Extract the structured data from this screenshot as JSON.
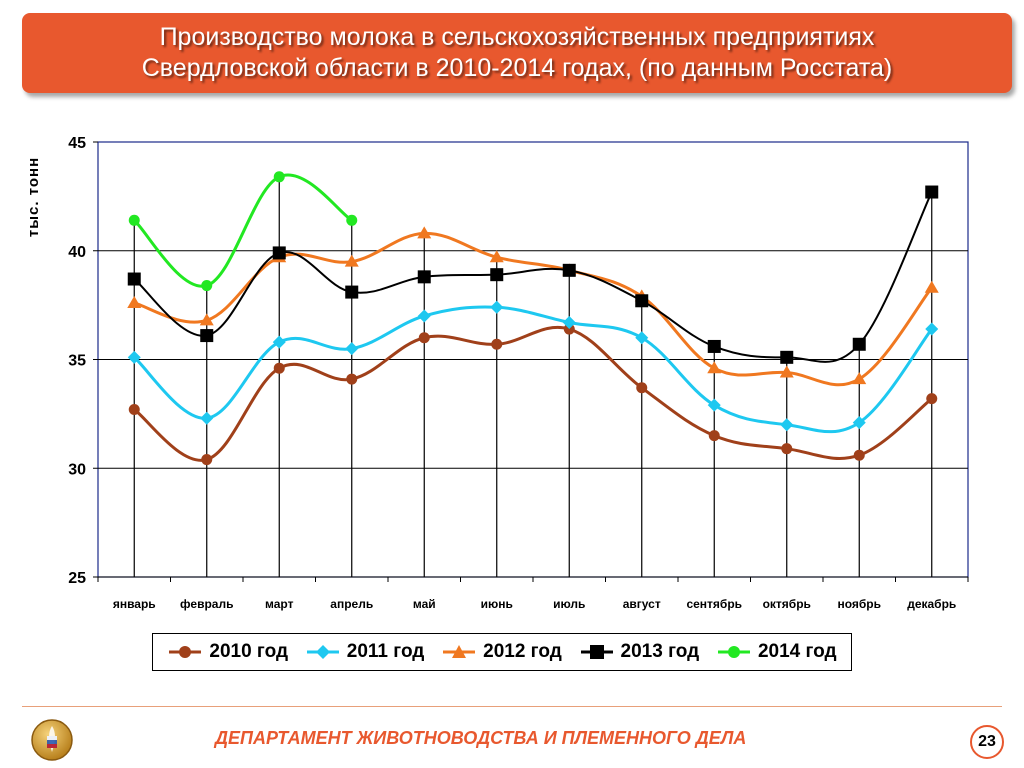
{
  "slide": {
    "title_line1": "Производство молока в сельскохозяйственных предприятиях",
    "title_line2": "Свердловской области в 2010-2014 годах, (по данным Росстата)",
    "footer": "ДЕПАРТАМЕНТ ЖИВОТНОВОДСТВА И ПЛЕМЕННОГО ДЕЛА",
    "page_number": "23",
    "accent_color": "#e8582e",
    "logo_icon": "wheat-emblem-icon"
  },
  "chart_data": {
    "type": "line",
    "ylabel": "тыс. тонн",
    "xlabel": "",
    "title": "",
    "ylim": [
      25,
      45
    ],
    "yticks": [
      25,
      30,
      35,
      40,
      45
    ],
    "grid": "horizontal",
    "legend_position": "bottom",
    "categories": [
      "январь",
      "февраль",
      "март",
      "апрель",
      "май",
      "июнь",
      "июль",
      "август",
      "сентябрь",
      "октябрь",
      "ноябрь",
      "декабрь"
    ],
    "series": [
      {
        "name": "2010 год",
        "color": "#a0401a",
        "marker": "circle",
        "values": [
          32.7,
          30.4,
          34.6,
          34.1,
          36.0,
          35.7,
          36.4,
          33.7,
          31.5,
          30.9,
          30.6,
          33.2
        ]
      },
      {
        "name": "2011 год",
        "color": "#1ec8f0",
        "marker": "diamond",
        "values": [
          35.1,
          32.3,
          35.8,
          35.5,
          37.0,
          37.4,
          36.7,
          36.0,
          32.9,
          32.0,
          32.1,
          36.4
        ]
      },
      {
        "name": "2012 год",
        "color": "#f07820",
        "marker": "triangle",
        "values": [
          37.6,
          36.8,
          39.7,
          39.5,
          40.8,
          39.7,
          39.1,
          37.9,
          34.6,
          34.4,
          34.1,
          38.3
        ]
      },
      {
        "name": "2013 год",
        "color": "#000000",
        "marker": "square",
        "values": [
          38.7,
          36.1,
          39.9,
          38.1,
          38.8,
          38.9,
          39.1,
          37.7,
          35.6,
          35.1,
          35.7,
          42.7
        ]
      },
      {
        "name": "2014 год",
        "color": "#22e822",
        "marker": "circle",
        "values": [
          41.4,
          38.4,
          43.4,
          41.4,
          null,
          null,
          null,
          null,
          null,
          null,
          null,
          null
        ]
      }
    ]
  }
}
